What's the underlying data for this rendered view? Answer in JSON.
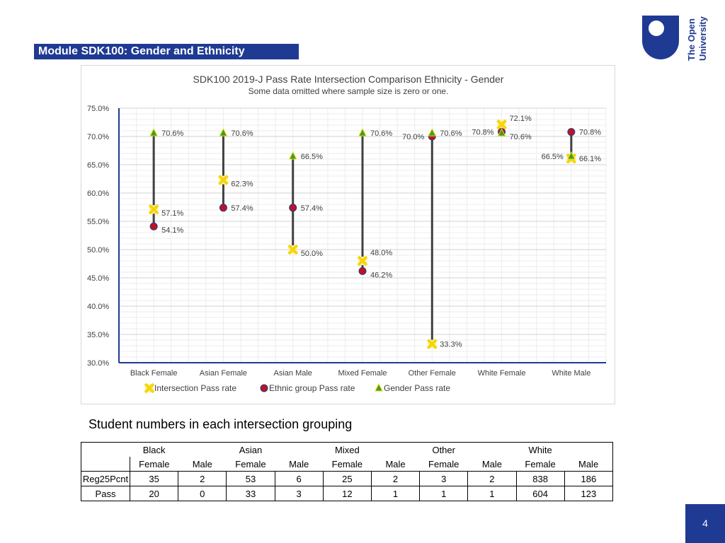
{
  "slide": {
    "title": "Module SDK100: Gender and Ethnicity",
    "page_number": "4",
    "logo_text_line1": "The Open",
    "logo_text_line2": "University"
  },
  "chart_data": {
    "type": "scatter",
    "title": "SDK100 2019-J Pass Rate Intersection Comparison Ethnicity - Gender",
    "subtitle": "Some data omitted where sample size is zero or one.",
    "ylim": [
      30,
      75
    ],
    "yticks": [
      "75.0%",
      "70.0%",
      "65.0%",
      "60.0%",
      "55.0%",
      "50.0%",
      "45.0%",
      "40.0%",
      "35.0%",
      "30.0%"
    ],
    "ytick_values": [
      75,
      70,
      65,
      60,
      55,
      50,
      45,
      40,
      35,
      30
    ],
    "categories": [
      "Black Female",
      "Asian Female",
      "Asian Male",
      "Mixed Female",
      "Other Female",
      "White Female",
      "White Male"
    ],
    "series": [
      {
        "name": "Intersection Pass rate",
        "marker": "x-square",
        "color": "#f5d50a",
        "values": [
          57.1,
          62.3,
          50.0,
          48.0,
          33.3,
          72.1,
          66.1
        ],
        "labels": [
          "57.1%",
          "62.3%",
          "50.0%",
          "48.0%",
          "33.3%",
          "72.1%",
          "66.1%"
        ]
      },
      {
        "name": "Ethnic group Pass rate",
        "marker": "circle",
        "color": "#c0141c",
        "values": [
          54.1,
          57.4,
          57.4,
          46.2,
          70.0,
          70.8,
          70.8
        ],
        "labels": [
          "54.1%",
          "57.4%",
          "57.4%",
          "46.2%",
          "70.0%",
          "70.8%",
          "70.8%"
        ]
      },
      {
        "name": "Gender Pass rate",
        "marker": "triangle",
        "color": "#3aa02a",
        "values": [
          70.6,
          70.6,
          66.5,
          70.6,
          70.6,
          70.6,
          66.5
        ],
        "labels": [
          "70.6%",
          "70.6%",
          "66.5%",
          "70.6%",
          "70.6%",
          "70.6%",
          "66.5%"
        ]
      }
    ],
    "ranges": [
      [
        54.1,
        70.6
      ],
      [
        57.4,
        70.6
      ],
      [
        50.0,
        66.5
      ],
      [
        46.2,
        70.6
      ],
      [
        33.3,
        70.6
      ],
      [
        70.6,
        72.1
      ],
      [
        66.1,
        70.8
      ]
    ],
    "grid": true,
    "legend_position": "bottom"
  },
  "table": {
    "heading": "Student numbers in each intersection grouping",
    "group_headers": [
      "Black",
      "",
      "Asian",
      "",
      "Mixed",
      "",
      "Other",
      "",
      "White",
      ""
    ],
    "sub_headers": [
      "Female",
      "Male",
      "Female",
      "Male",
      "Female",
      "Male",
      "Female",
      "Male",
      "Female",
      "Male"
    ],
    "rows": [
      {
        "label": "Reg25Pcnt",
        "values": [
          "35",
          "2",
          "53",
          "6",
          "25",
          "2",
          "3",
          "2",
          "838",
          "186"
        ]
      },
      {
        "label": "Pass",
        "values": [
          "20",
          "0",
          "33",
          "3",
          "12",
          "1",
          "1",
          "1",
          "604",
          "123"
        ]
      }
    ]
  }
}
